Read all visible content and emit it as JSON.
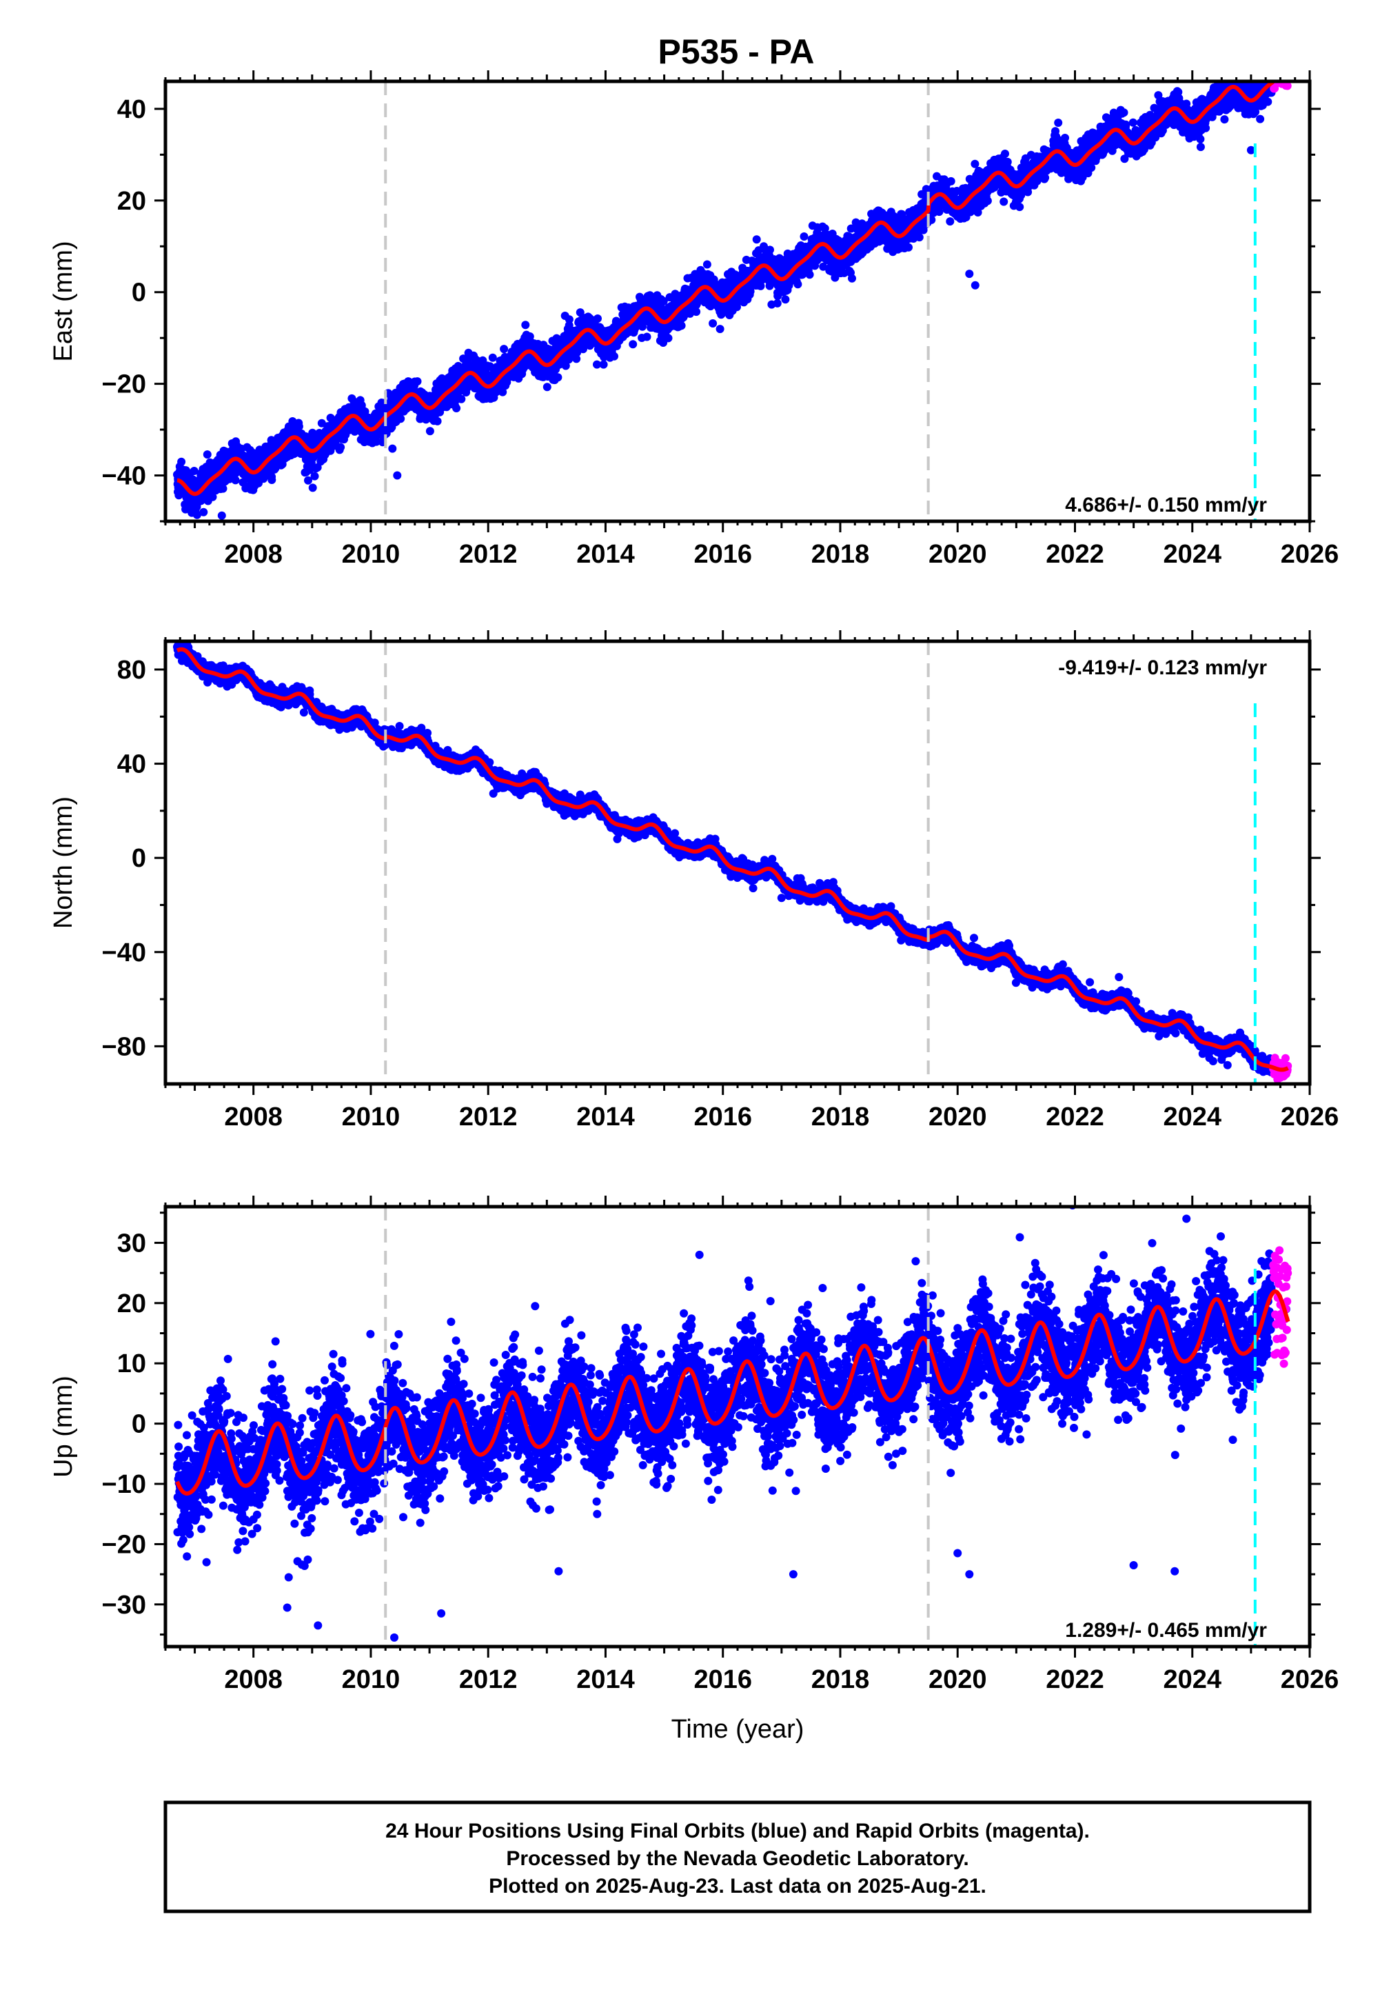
{
  "title": "P535 - PA",
  "caption": [
    "24 Hour Positions Using Final Orbits (blue) and Rapid Orbits (magenta).",
    "Processed by the Nevada Geodetic Laboratory.",
    "Plotted on 2025-Aug-23. Last data on 2025-Aug-21."
  ],
  "colors": {
    "final_orbits": "#0000ff",
    "rapid_orbits": "#ff00ff",
    "model_fit": "#ff0000",
    "equipment_change": "#c8c8c8",
    "last_event": "#00ffff",
    "frame": "#000000"
  },
  "chart_data": [
    {
      "type": "scatter",
      "title": "P535 - PA",
      "ylabel": "East (mm)",
      "xlabel": "",
      "xlim": [
        2006.5,
        2026.0
      ],
      "ylim": [
        -50,
        46
      ],
      "xticks": [
        2008,
        2010,
        2012,
        2014,
        2016,
        2018,
        2020,
        2022,
        2024,
        2026
      ],
      "yticks": [
        -40,
        -20,
        0,
        20,
        40
      ],
      "rate_label": "4.686+/- 0.150 mm/yr",
      "rate_position": "bottom-right",
      "model": {
        "t0": 2006.75,
        "y0": -43.0,
        "rate": 4.686,
        "annual_amp": 2.0,
        "annual_phase": 0.35,
        "semiannual_amp": 0.6,
        "semiannual_phase": 0.1,
        "offsets": [
          {
            "epoch": 2019.5,
            "size": 1.5
          }
        ]
      },
      "scatter_sigma": 1.8,
      "data_start": 2006.7,
      "data_end": 2025.35,
      "rapid_start": 2025.38,
      "rapid_end": 2025.63,
      "rapid_sigma": 2.0,
      "outliers": [
        [
          2007.15,
          -48
        ],
        [
          2010.45,
          -40
        ],
        [
          2018.2,
          3
        ],
        [
          2020.2,
          4
        ],
        [
          2020.3,
          1.5
        ],
        [
          2025.0,
          31
        ]
      ],
      "step_epochs": [
        2010.25,
        2019.5
      ],
      "last_event_epoch": 2025.07
    },
    {
      "type": "scatter",
      "ylabel": "North (mm)",
      "xlabel": "",
      "xlim": [
        2006.5,
        2026.0
      ],
      "ylim": [
        -96,
        92
      ],
      "xticks": [
        2008,
        2010,
        2012,
        2014,
        2016,
        2018,
        2020,
        2022,
        2024,
        2026
      ],
      "yticks": [
        -80,
        -40,
        0,
        40,
        80
      ],
      "rate_label": "-9.419+/- 0.123 mm/yr",
      "rate_position": "top-right",
      "model": {
        "t0": 2006.75,
        "y0": 85.5,
        "rate": -9.419,
        "annual_amp": 2.6,
        "annual_phase": 0.55,
        "semiannual_amp": 0.9,
        "semiannual_phase": 0.2,
        "offsets": [
          {
            "epoch": 2010.25,
            "size": 1.0
          },
          {
            "epoch": 2019.5,
            "size": 1.5
          }
        ]
      },
      "scatter_sigma": 1.5,
      "data_start": 2006.7,
      "data_end": 2025.35,
      "rapid_start": 2025.38,
      "rapid_end": 2025.63,
      "rapid_sigma": 1.8,
      "outliers": [
        [
          2013.0,
          23
        ],
        [
          2014.2,
          8
        ],
        [
          2017.0,
          -17
        ],
        [
          2019.3,
          -36
        ],
        [
          2024.6,
          -88
        ]
      ],
      "step_epochs": [
        2010.25,
        2019.5
      ],
      "last_event_epoch": 2025.07
    },
    {
      "type": "scatter",
      "ylabel": "Up (mm)",
      "xlabel": "Time (year)",
      "xlim": [
        2006.5,
        2026.0
      ],
      "ylim": [
        -37,
        36
      ],
      "xticks": [
        2008,
        2010,
        2012,
        2014,
        2016,
        2018,
        2020,
        2022,
        2024,
        2026
      ],
      "yticks": [
        -30,
        -20,
        -10,
        0,
        10,
        20,
        30
      ],
      "rate_label": "1.289+/- 0.465 mm/yr",
      "rate_position": "bottom-right",
      "model": {
        "t0": 2006.75,
        "y0": -7.5,
        "rate": 1.289,
        "annual_amp": 4.8,
        "annual_phase": 0.15,
        "semiannual_amp": 0.6,
        "semiannual_phase": 0.3,
        "offsets": []
      },
      "scatter_sigma": 4.2,
      "data_start": 2006.7,
      "data_end": 2025.35,
      "rapid_start": 2025.38,
      "rapid_end": 2025.63,
      "rapid_sigma": 4.5,
      "outliers": [
        [
          2009.1,
          -33.5
        ],
        [
          2010.4,
          -35.5
        ],
        [
          2011.2,
          -31.5
        ],
        [
          2007.2,
          -23
        ],
        [
          2008.6,
          -25.5
        ],
        [
          2013.2,
          -24.5
        ],
        [
          2015.6,
          28
        ],
        [
          2017.2,
          -25
        ],
        [
          2017.7,
          22.5
        ],
        [
          2020.0,
          -21.5
        ],
        [
          2020.2,
          -25
        ],
        [
          2012.8,
          19.5
        ],
        [
          2022.7,
          24
        ],
        [
          2023.0,
          -23.5
        ],
        [
          2023.9,
          34
        ],
        [
          2023.7,
          -24.5
        ],
        [
          2025.6,
          19
        ]
      ],
      "step_epochs": [
        2010.25,
        2019.5
      ],
      "last_event_epoch": 2025.07
    }
  ]
}
